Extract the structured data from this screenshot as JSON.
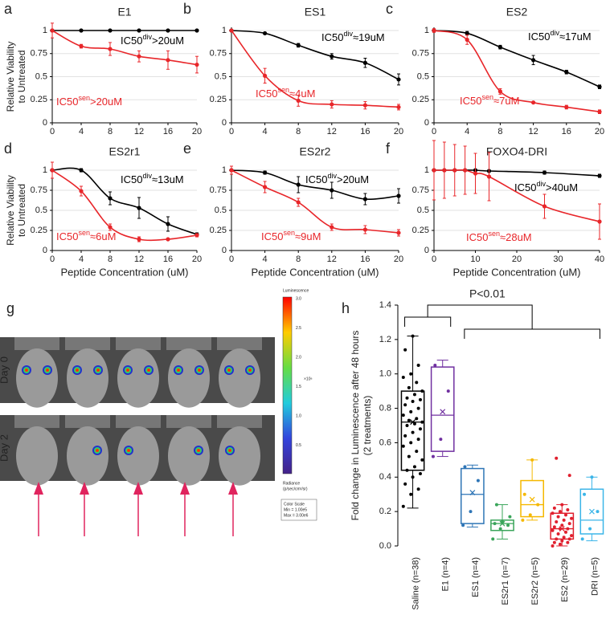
{
  "chart_data": [
    {
      "type": "line",
      "panel": "a",
      "title": "E1",
      "ylabel": [
        "Relative Viability",
        "to Untreated"
      ],
      "x": [
        0,
        4,
        8,
        12,
        16,
        20
      ],
      "xlim": [
        0,
        20
      ],
      "xticks": [
        0,
        4,
        8,
        12,
        16,
        20
      ],
      "ylim": [
        0,
        1
      ],
      "yticks": [
        0,
        0.25,
        0.5,
        0.75,
        1
      ],
      "grid": true,
      "series": [
        {
          "color": "#000000",
          "values": [
            1,
            1,
            1,
            1,
            1,
            1
          ],
          "errors": [
            0,
            0.01,
            0,
            0,
            0.01,
            0
          ]
        },
        {
          "color": "#e8262a",
          "values": [
            1,
            0.83,
            0.8,
            0.72,
            0.68,
            0.63
          ],
          "errors": [
            0.08,
            0.02,
            0.07,
            0.06,
            0.1,
            0.09
          ]
        }
      ],
      "annotations": [
        {
          "text": "IC50",
          "sup": "div",
          "suffix": ">20uM",
          "color": "#000000"
        },
        {
          "text": "IC50",
          "sup": "sen",
          "suffix": ">20uM",
          "color": "#e8262a"
        }
      ]
    },
    {
      "type": "line",
      "panel": "b",
      "title": "ES1",
      "x": [
        0,
        4,
        8,
        12,
        16,
        20
      ],
      "xlim": [
        0,
        20
      ],
      "xticks": [
        0,
        4,
        8,
        12,
        16,
        20
      ],
      "ylim": [
        0,
        1
      ],
      "yticks": [
        0,
        0.25,
        0.5,
        0.75,
        1
      ],
      "grid": true,
      "series": [
        {
          "color": "#000000",
          "values": [
            1,
            0.97,
            0.84,
            0.72,
            0.65,
            0.47
          ],
          "errors": [
            0,
            0.01,
            0.02,
            0.03,
            0.05,
            0.06
          ]
        },
        {
          "color": "#e8262a",
          "values": [
            1,
            0.51,
            0.24,
            0.2,
            0.19,
            0.17
          ],
          "errors": [
            0,
            0.08,
            0.06,
            0.04,
            0.04,
            0.03
          ]
        }
      ],
      "annotations": [
        {
          "text": "IC50",
          "sup": "div",
          "suffix": "≈19uM",
          "color": "#000000"
        },
        {
          "text": "IC50",
          "sup": "sen",
          "suffix": "≈4uM",
          "color": "#e8262a"
        }
      ]
    },
    {
      "type": "line",
      "panel": "c",
      "title": "ES2",
      "x": [
        0,
        4,
        8,
        12,
        16,
        20
      ],
      "xlim": [
        0,
        20
      ],
      "xticks": [
        0,
        4,
        8,
        12,
        16,
        20
      ],
      "ylim": [
        0,
        1
      ],
      "yticks": [
        0,
        0.25,
        0.5,
        0.75,
        1
      ],
      "grid": true,
      "series": [
        {
          "color": "#000000",
          "values": [
            1,
            0.97,
            0.82,
            0.68,
            0.55,
            0.39
          ],
          "errors": [
            0.01,
            0.02,
            0.02,
            0.05,
            0.02,
            0.02
          ]
        },
        {
          "color": "#e8262a",
          "values": [
            1,
            0.9,
            0.34,
            0.22,
            0.17,
            0.12
          ],
          "errors": [
            0.02,
            0.05,
            0.03,
            0.01,
            0.02,
            0.02
          ]
        }
      ],
      "annotations": [
        {
          "text": "IC50",
          "sup": "div",
          "suffix": "≈17uM",
          "color": "#000000"
        },
        {
          "text": "IC50",
          "sup": "sen",
          "suffix": "≈7uM",
          "color": "#e8262a"
        }
      ]
    },
    {
      "type": "line",
      "panel": "d",
      "title": "ES2r1",
      "ylabel": [
        "Relative Viability",
        "to Untreated"
      ],
      "xlabel": "Peptide Concentration (uM)",
      "x": [
        0,
        4,
        8,
        12,
        16,
        20
      ],
      "xlim": [
        0,
        20
      ],
      "xticks": [
        0,
        4,
        8,
        12,
        16,
        20
      ],
      "ylim": [
        0,
        1
      ],
      "yticks": [
        0,
        0.25,
        0.5,
        0.75,
        1
      ],
      "grid": true,
      "series": [
        {
          "color": "#000000",
          "values": [
            1,
            1,
            0.65,
            0.53,
            0.33,
            0.2
          ],
          "errors": [
            0,
            0.02,
            0.08,
            0.13,
            0.09,
            0.02
          ]
        },
        {
          "color": "#e8262a",
          "values": [
            1,
            0.74,
            0.29,
            0.14,
            0.14,
            0.19
          ],
          "errors": [
            0.1,
            0.06,
            0.04,
            0.03,
            0.01,
            0.02
          ]
        }
      ],
      "annotations": [
        {
          "text": "IC50",
          "sup": "div",
          "suffix": "≈13uM",
          "color": "#000000"
        },
        {
          "text": "IC50",
          "sup": "sen",
          "suffix": "≈6uM",
          "color": "#e8262a"
        }
      ]
    },
    {
      "type": "line",
      "panel": "e",
      "title": "ES2r2",
      "xlabel": "Peptide Concentration (uM)",
      "x": [
        0,
        4,
        8,
        12,
        16,
        20
      ],
      "xlim": [
        0,
        20
      ],
      "xticks": [
        0,
        4,
        8,
        12,
        16,
        20
      ],
      "ylim": [
        0,
        1
      ],
      "yticks": [
        0,
        0.25,
        0.5,
        0.75,
        1
      ],
      "grid": true,
      "series": [
        {
          "color": "#000000",
          "values": [
            1,
            0.97,
            0.82,
            0.75,
            0.64,
            0.68
          ],
          "errors": [
            0.01,
            0.02,
            0.1,
            0.1,
            0.07,
            0.09
          ]
        },
        {
          "color": "#e8262a",
          "values": [
            1,
            0.79,
            0.6,
            0.29,
            0.26,
            0.22
          ],
          "errors": [
            0.05,
            0.07,
            0.05,
            0.04,
            0.05,
            0.04
          ]
        }
      ],
      "annotations": [
        {
          "text": "IC50",
          "sup": "div",
          "suffix": ">20uM",
          "color": "#000000"
        },
        {
          "text": "IC50",
          "sup": "sen",
          "suffix": "≈9uM",
          "color": "#e8262a"
        }
      ]
    },
    {
      "type": "line",
      "panel": "f",
      "title": "FOXO4-DRI",
      "xlabel": "Peptide Concentration (uM)",
      "x": [
        0,
        2.5,
        5,
        7.5,
        10,
        13.3,
        26.7,
        40
      ],
      "xlim": [
        0,
        40
      ],
      "xticks": [
        0,
        10,
        20,
        30,
        40
      ],
      "ylim": [
        0,
        1
      ],
      "yticks": [
        0,
        0.25,
        0.5,
        0.75,
        1
      ],
      "grid": true,
      "series": [
        {
          "color": "#000000",
          "values": [
            1,
            1,
            1,
            1,
            1,
            0.99,
            0.97,
            0.93
          ],
          "errors": [
            0.01,
            0.01,
            0.01,
            0.01,
            0.01,
            0.01,
            0.02,
            0.02
          ]
        },
        {
          "color": "#e8262a",
          "values": [
            1,
            1,
            1,
            1,
            0.96,
            0.92,
            0.55,
            0.36
          ],
          "errors": [
            0.37,
            0.35,
            0.32,
            0.3,
            0.25,
            0.3,
            0.15,
            0.22
          ]
        }
      ],
      "annotations": [
        {
          "text": "IC50",
          "sup": "div",
          "suffix": ">40uM",
          "color": "#000000"
        },
        {
          "text": "IC50",
          "sup": "sen",
          "suffix": "≈28uM",
          "color": "#e8262a"
        }
      ]
    },
    {
      "type": "box",
      "panel": "h",
      "ylabel": [
        "Fold change in Luminescence after 48 hours",
        "(2 treatments)"
      ],
      "annotation": "P<0.01",
      "categories": [
        "Saline (n=38)",
        "E1 (n=4)",
        "ES1 (n=4)",
        "ES2r1 (n=7)",
        "ES2r2 (n=5)",
        "ES2 (n=29)",
        "DRI (n=5)"
      ],
      "ylim": [
        0,
        1.4
      ],
      "yticks": [
        {
          "value": 0,
          "label": "0.0"
        },
        0.2,
        0.4,
        0.6,
        0.8,
        {
          "value": 1,
          "label": "1.0"
        },
        1.2,
        1.4
      ],
      "boxes": [
        {
          "color": "#000000",
          "min": 0.22,
          "q1": 0.44,
          "median": 0.72,
          "q3": 0.9,
          "max": 1.22,
          "mean": 0.72,
          "points": [
            0.23,
            0.3,
            0.33,
            0.36,
            0.4,
            0.42,
            0.44,
            0.46,
            0.5,
            0.52,
            0.55,
            0.58,
            0.6,
            0.62,
            0.64,
            0.66,
            0.68,
            0.7,
            0.71,
            0.72,
            0.73,
            0.74,
            0.76,
            0.78,
            0.8,
            0.82,
            0.84,
            0.85,
            0.86,
            0.88,
            0.9,
            0.92,
            0.95,
            0.98,
            1.0,
            1.05,
            1.14,
            1.22
          ]
        },
        {
          "color": "#7030a0",
          "min": 0.52,
          "q1": 0.55,
          "median": 0.76,
          "q3": 1.04,
          "max": 1.08,
          "mean": 0.78,
          "points": [
            0.52,
            0.62,
            0.9,
            1.05
          ]
        },
        {
          "color": "#2e75b6",
          "min": 0.11,
          "q1": 0.13,
          "median": 0.3,
          "q3": 0.45,
          "max": 0.47,
          "mean": 0.31,
          "points": [
            0.12,
            0.2,
            0.38,
            0.46
          ]
        },
        {
          "color": "#3aa55a",
          "min": 0.04,
          "q1": 0.09,
          "median": 0.13,
          "q3": 0.15,
          "max": 0.24,
          "mean": 0.13,
          "points": [
            0.04,
            0.1,
            0.12,
            0.13,
            0.14,
            0.17,
            0.24
          ]
        },
        {
          "color": "#f5b800",
          "min": 0.15,
          "q1": 0.17,
          "median": 0.24,
          "q3": 0.38,
          "max": 0.5,
          "mean": 0.27,
          "points": [
            0.15,
            0.18,
            0.24,
            0.3,
            0.5
          ]
        },
        {
          "color": "#e0202e",
          "min": 0,
          "q1": 0.04,
          "median": 0.1,
          "q3": 0.19,
          "max": 0.24,
          "mean": 0.1,
          "points": [
            0,
            0.01,
            0.02,
            0.02,
            0.03,
            0.04,
            0.04,
            0.05,
            0.06,
            0.07,
            0.08,
            0.09,
            0.1,
            0.1,
            0.11,
            0.12,
            0.13,
            0.14,
            0.15,
            0.16,
            0.17,
            0.18,
            0.19,
            0.2,
            0.21,
            0.22,
            0.24,
            0.41,
            0.51
          ]
        },
        {
          "color": "#3bb5e8",
          "min": 0.03,
          "q1": 0.07,
          "median": 0.15,
          "q3": 0.33,
          "max": 0.4,
          "mean": 0.2,
          "points": [
            0.04,
            0.1,
            0.2,
            0.3,
            0.4
          ]
        }
      ]
    }
  ],
  "figure_g": {
    "panel": "g",
    "rows": [
      "Day 0",
      "Day 2"
    ],
    "colorbar_title": "Luminescence",
    "colorbar_labels": [
      "3.0",
      "2.5",
      "2.0",
      "1.5",
      "1.0",
      "0.5"
    ],
    "colorbar_unit": "×10⁶",
    "radiance": [
      "Radiance",
      "(p/sec/cm²/sr)"
    ],
    "scale_box": [
      "Color Scale",
      "Min = 1.00e5",
      "Max = 3.00e6"
    ]
  }
}
